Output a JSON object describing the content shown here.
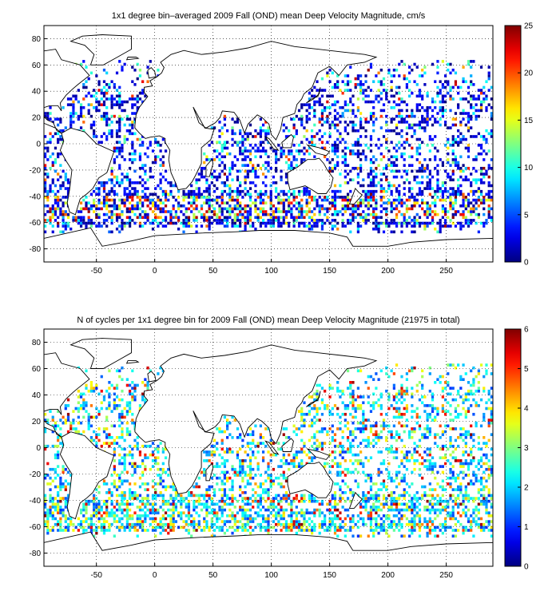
{
  "chart_data": [
    {
      "type": "heatmap",
      "title": "1x1 degree bin–averaged 2009 Fall (OND) mean Deep Velocity Magnitude, cm/s",
      "xlabel": "",
      "ylabel": "",
      "xlim": [
        -95,
        290
      ],
      "ylim": [
        -90,
        90
      ],
      "xticks": [
        -50,
        0,
        50,
        100,
        150,
        200,
        250
      ],
      "yticks": [
        80,
        60,
        40,
        20,
        0,
        -20,
        -40,
        -60,
        -80
      ],
      "grid": true,
      "colormap": "jet",
      "colorbar": {
        "min": 0,
        "max": 25,
        "ticks": [
          0,
          5,
          10,
          15,
          20,
          25
        ]
      },
      "land_color": "#ffffff",
      "coastline_color": "#000000"
    },
    {
      "type": "heatmap",
      "title": "N of cycles per 1x1 degree bin for 2009 Fall (OND) mean Deep Velocity Magnitude (21975 in total)",
      "xlabel": "",
      "ylabel": "",
      "xlim": [
        -95,
        290
      ],
      "ylim": [
        -90,
        90
      ],
      "xticks": [
        -50,
        0,
        50,
        100,
        150,
        200,
        250
      ],
      "yticks": [
        80,
        60,
        40,
        20,
        0,
        -20,
        -40,
        -60,
        -80
      ],
      "grid": true,
      "colormap": "jet",
      "colorbar": {
        "min": 0,
        "max": 6,
        "ticks": [
          0,
          1,
          2,
          3,
          4,
          5,
          6
        ]
      },
      "total_cycles": 21975,
      "land_color": "#ffffff",
      "coastline_color": "#000000"
    }
  ]
}
